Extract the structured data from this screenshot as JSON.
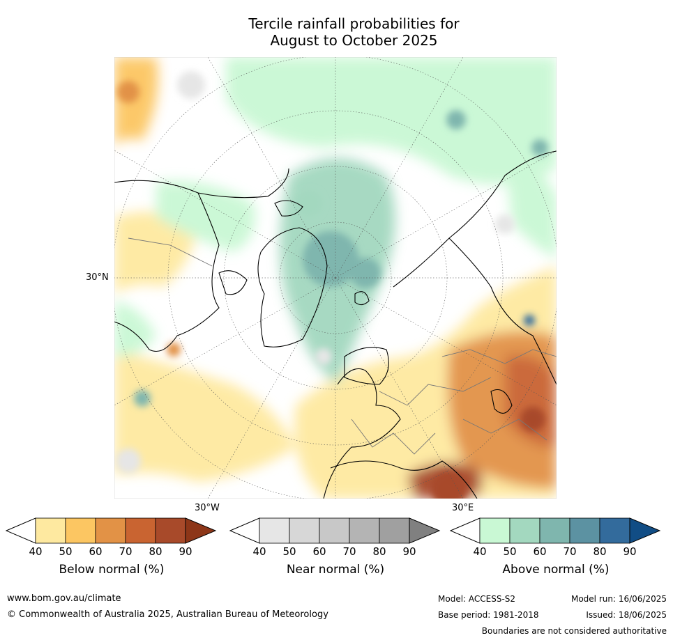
{
  "title": {
    "line1": "Tercile rainfall probabilities for",
    "line2": "August to October 2025"
  },
  "map": {
    "projection": "polar-stereographic-north",
    "labels": {
      "lat30": "30°N",
      "lon30w": "30°W",
      "lon30e": "30°E"
    }
  },
  "legend": {
    "below": {
      "label": "Below normal (%)",
      "ticks": [
        "40",
        "50",
        "60",
        "70",
        "80",
        "90"
      ],
      "colors": [
        "#ffffff",
        "#fee9a0",
        "#fcc662",
        "#e29246",
        "#c96431",
        "#a84a2a",
        "#8d3618"
      ]
    },
    "near": {
      "label": "Near normal (%)",
      "ticks": [
        "40",
        "50",
        "60",
        "70",
        "80",
        "90"
      ],
      "colors": [
        "#ffffff",
        "#e6e6e6",
        "#d7d7d7",
        "#c8c8c8",
        "#b4b4b4",
        "#a0a0a0",
        "#808080"
      ]
    },
    "above": {
      "label": "Above normal (%)",
      "ticks": [
        "40",
        "50",
        "60",
        "70",
        "80",
        "90"
      ],
      "colors": [
        "#ffffff",
        "#c9f8d4",
        "#a3d8bf",
        "#7fb6ae",
        "#5c92a2",
        "#336b9c",
        "#114d85"
      ]
    }
  },
  "footer": {
    "website": "www.bom.gov.au/climate",
    "copyright": "© Commonwealth of Australia 2025, Australian Bureau of Meteorology",
    "model": "Model: ACCESS-S2",
    "base_period": "Base period: 1981-2018",
    "model_run": "Model run: 16/06/2025",
    "issued": "Issued: 18/06/2025",
    "disclaimer": "Boundaries are not considered authoritative"
  }
}
